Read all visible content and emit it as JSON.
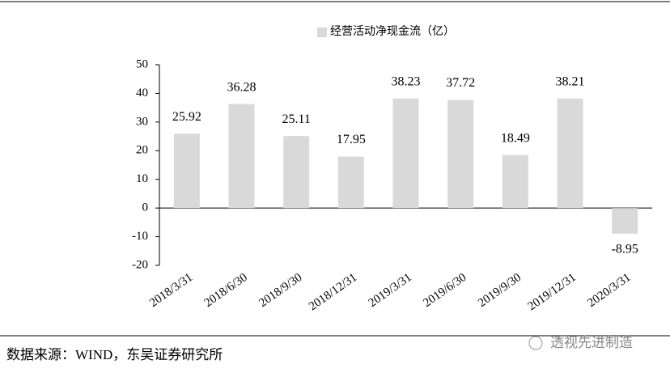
{
  "chart_data": {
    "type": "bar",
    "legend": "经营活动净现金流（亿）",
    "color": "#d9d9d9",
    "categories": [
      "2018/3/31",
      "2018/6/30",
      "2018/9/30",
      "2018/12/31",
      "2019/3/31",
      "2019/6/30",
      "2019/9/30",
      "2019/12/31",
      "2020/3/31"
    ],
    "values": [
      25.92,
      36.28,
      25.11,
      17.95,
      38.23,
      37.72,
      18.49,
      38.21,
      -8.95
    ],
    "ylim": [
      -20,
      50
    ],
    "yticks": [
      -20,
      -10,
      0,
      10,
      20,
      30,
      40,
      50
    ]
  },
  "source": "数据来源：WIND，东吴证券研究所",
  "watermark": "透视先进制造"
}
